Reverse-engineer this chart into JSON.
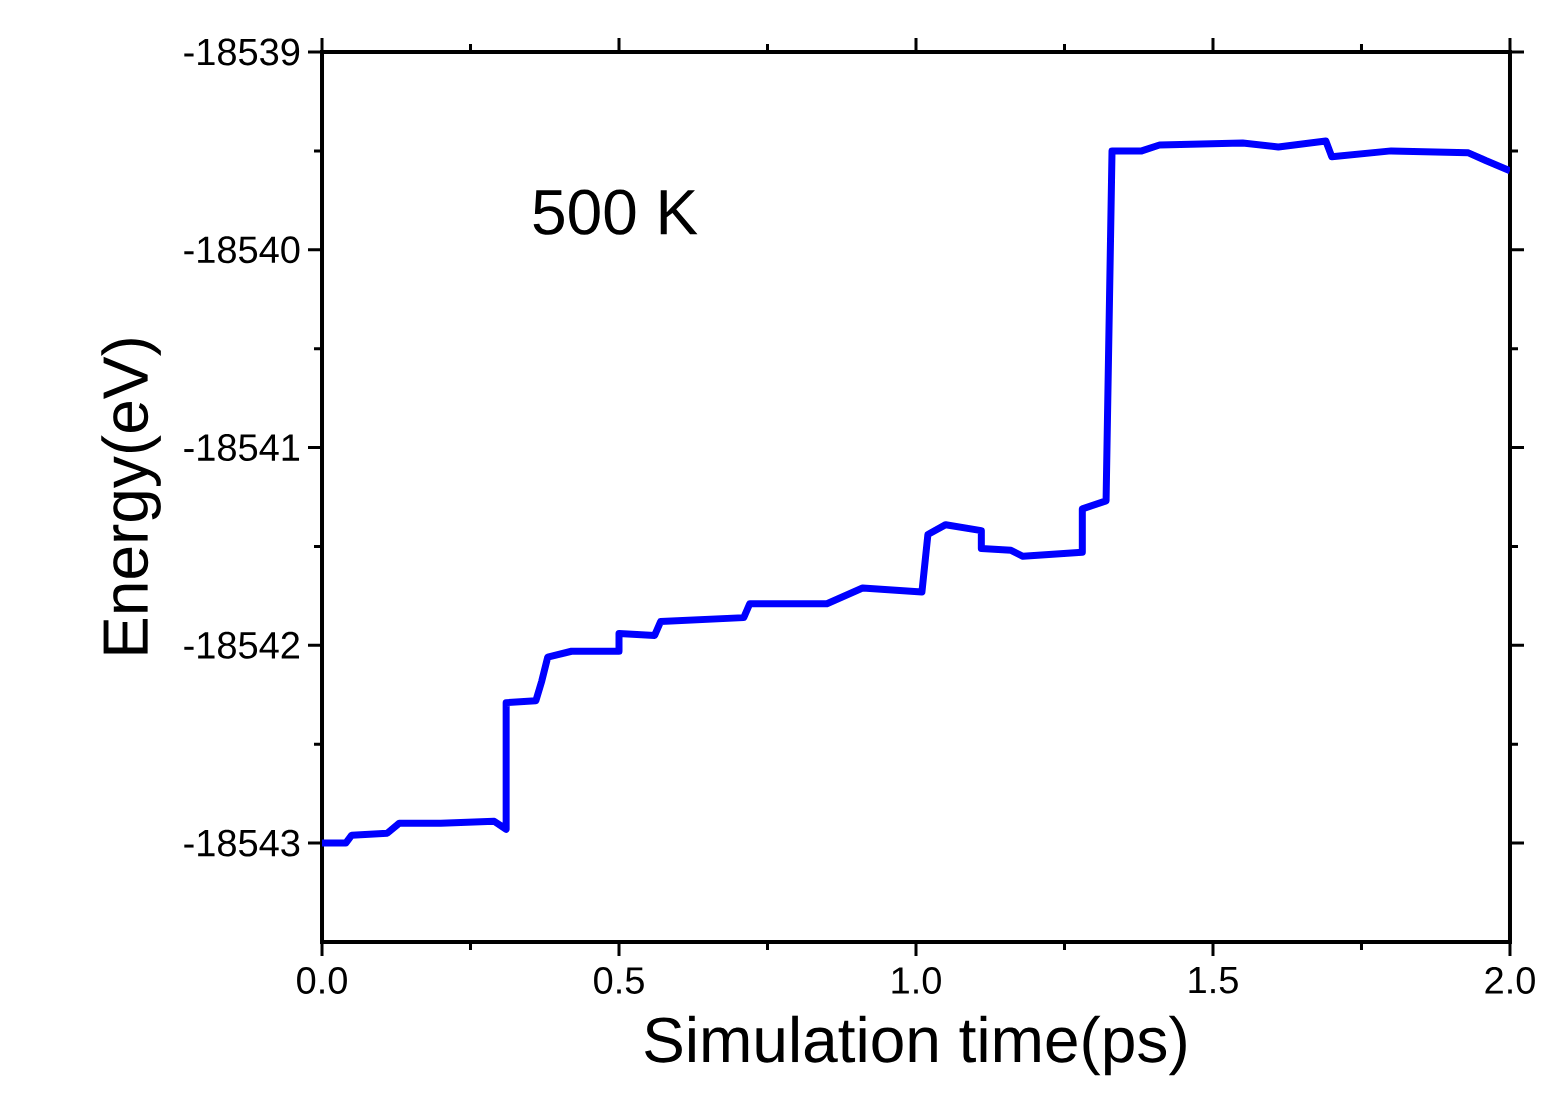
{
  "chart_data": {
    "type": "line",
    "xlabel": "Simulation time(ps)",
    "ylabel": "Energy(eV)",
    "annotations": [
      "500 K"
    ],
    "xlim": [
      0,
      2
    ],
    "ylim": [
      -18543.5,
      -18539
    ],
    "xticks": [
      {
        "value": 0,
        "label": "0.0"
      },
      {
        "value": 0.5,
        "label": "0.5"
      },
      {
        "value": 1,
        "label": "1.0"
      },
      {
        "value": 1.5,
        "label": "1.5"
      },
      {
        "value": 2,
        "label": "2.0"
      }
    ],
    "yticks": [
      -18543,
      -18542,
      -18541,
      -18540,
      -18539
    ],
    "grid": false,
    "marker": "none",
    "line_style": "solid",
    "series": [
      {
        "color": "#0000ff",
        "x": [
          0,
          0.04,
          0.05,
          0.11,
          0.13,
          0.2,
          0.29,
          0.31,
          0.31,
          0.36,
          0.37,
          0.38,
          0.42,
          0.5,
          0.5,
          0.56,
          0.57,
          0.71,
          0.72,
          0.85,
          0.91,
          1.01,
          1.02,
          1.05,
          1.11,
          1.11,
          1.16,
          1.18,
          1.28,
          1.28,
          1.32,
          1.33,
          1.38,
          1.41,
          1.55,
          1.61,
          1.69,
          1.7,
          1.8,
          1.93,
          1.96,
          2.0
        ],
        "values": [
          -18543.0,
          -18543.0,
          -18542.96,
          -18542.95,
          -18542.9,
          -18542.9,
          -18542.89,
          -18542.93,
          -18542.29,
          -18542.28,
          -18542.18,
          -18542.06,
          -18542.03,
          -18542.03,
          -18541.94,
          -18541.95,
          -18541.88,
          -18541.86,
          -18541.79,
          -18541.79,
          -18541.71,
          -18541.73,
          -18541.44,
          -18541.39,
          -18541.42,
          -18541.51,
          -18541.52,
          -18541.55,
          -18541.53,
          -18541.31,
          -18541.27,
          -18539.5,
          -18539.5,
          -18539.47,
          -18539.46,
          -18539.48,
          -18539.45,
          -18539.53,
          -18539.5,
          -18539.51,
          -18539.55,
          -18539.6
        ]
      }
    ]
  }
}
